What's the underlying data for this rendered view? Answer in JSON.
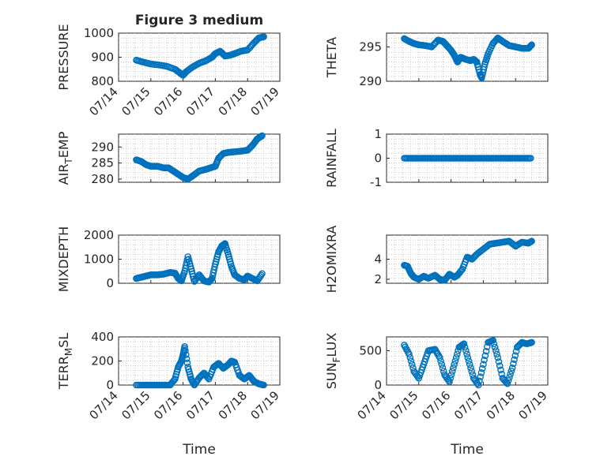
{
  "chart_data": [
    {
      "type": "scatter",
      "title": "Figure 3 medium",
      "ylabel": "PRESSURE",
      "ylim": [
        800,
        1000
      ],
      "yticks": [
        "800",
        "900",
        "1000"
      ],
      "xlim": [
        "07/14",
        "07/19"
      ],
      "xticks": [
        "07/14",
        "07/15",
        "07/16",
        "07/17",
        "07/18",
        "07/19"
      ],
      "grid": "on",
      "marker_color": "#0072bd",
      "series": [
        {
          "x": [
            14.55,
            14.75,
            15.0,
            15.25,
            15.5,
            15.75,
            15.9,
            16.0,
            16.1,
            16.3,
            16.5,
            16.7,
            16.9,
            17.0,
            17.15,
            17.3,
            17.45,
            17.6,
            17.8,
            18.0,
            18.2,
            18.35,
            18.5
          ],
          "y": [
            888,
            880,
            872,
            868,
            862,
            850,
            835,
            825,
            840,
            860,
            875,
            885,
            900,
            915,
            925,
            905,
            908,
            915,
            925,
            930,
            960,
            980,
            985
          ]
        }
      ]
    },
    {
      "type": "scatter",
      "ylabel": "THETA",
      "ylim": [
        290,
        297
      ],
      "yticks": [
        "290",
        "295"
      ],
      "xlim": [
        "07/14",
        "07/19"
      ],
      "grid": "on",
      "series": [
        {
          "x": [
            14.55,
            14.7,
            14.85,
            15.0,
            15.2,
            15.4,
            15.6,
            15.75,
            15.85,
            16.0,
            16.1,
            16.2,
            16.3,
            16.45,
            16.6,
            16.7,
            16.8,
            16.9,
            16.95,
            17.05,
            17.15,
            17.3,
            17.45,
            17.6,
            17.8,
            18.0,
            18.2,
            18.4,
            18.5
          ],
          "y": [
            296.2,
            295.8,
            295.5,
            295.3,
            295.2,
            295.0,
            296.0,
            295.8,
            295.3,
            294.5,
            293.8,
            292.8,
            293.5,
            293.2,
            293.0,
            293.2,
            292.8,
            291.0,
            290.5,
            292.5,
            294.0,
            295.5,
            296.3,
            295.8,
            295.2,
            295.0,
            294.8,
            294.8,
            295.3
          ]
        }
      ]
    },
    {
      "type": "scatter",
      "ylabel": "AIR_TEMP",
      "ylim": [
        279,
        294
      ],
      "yticks": [
        "280",
        "285",
        "290"
      ],
      "xlim": [
        "07/14",
        "07/19"
      ],
      "grid": "on",
      "series": [
        {
          "x": [
            14.55,
            14.7,
            14.85,
            15.0,
            15.2,
            15.4,
            15.55,
            15.7,
            15.85,
            16.0,
            16.15,
            16.3,
            16.5,
            16.7,
            16.85,
            17.0,
            17.1,
            17.25,
            17.4,
            17.6,
            17.8,
            18.0,
            18.15,
            18.3,
            18.45
          ],
          "y": [
            286,
            285.5,
            284.5,
            284,
            284,
            283.5,
            283.5,
            282.5,
            281.5,
            280.5,
            280,
            281,
            282.5,
            283,
            283.5,
            284,
            286.5,
            288,
            288.3,
            288.5,
            288.7,
            289,
            290.5,
            292.5,
            293.5
          ]
        }
      ]
    },
    {
      "type": "scatter",
      "ylabel": "RAINFALL",
      "ylim": [
        -1,
        1
      ],
      "yticks": [
        "-1",
        "0",
        "1"
      ],
      "xlim": [
        "07/14",
        "07/19"
      ],
      "grid": "on",
      "series": [
        {
          "x": [
            14.55,
            18.5
          ],
          "y": [
            0,
            0
          ]
        }
      ]
    },
    {
      "type": "scatter",
      "ylabel": "MIXDEPTH",
      "ylim": [
        0,
        2000
      ],
      "yticks": [
        "0",
        "1000",
        "2000"
      ],
      "xlim": [
        "07/14",
        "07/19"
      ],
      "grid": "on",
      "series": [
        {
          "x": [
            14.55,
            14.7,
            14.85,
            15.0,
            15.2,
            15.4,
            15.6,
            15.75,
            15.85,
            15.95,
            16.05,
            16.15,
            16.25,
            16.35,
            16.5,
            16.65,
            16.8,
            16.9,
            17.0,
            17.1,
            17.2,
            17.3,
            17.4,
            17.5,
            17.6,
            17.75,
            17.9,
            18.0,
            18.15,
            18.3,
            18.45
          ],
          "y": [
            200,
            250,
            300,
            350,
            350,
            380,
            450,
            420,
            200,
            100,
            500,
            1100,
            600,
            80,
            350,
            100,
            50,
            200,
            800,
            1300,
            1550,
            1650,
            1200,
            700,
            350,
            200,
            150,
            300,
            200,
            100,
            400
          ]
        }
      ]
    },
    {
      "type": "scatter",
      "ylabel": "H2OMIXRA",
      "ylim": [
        1.6,
        6.4
      ],
      "yticks": [
        "2",
        "4"
      ],
      "xlim": [
        "07/14",
        "07/19"
      ],
      "grid": "on",
      "series": [
        {
          "x": [
            14.55,
            14.65,
            14.75,
            14.85,
            15.0,
            15.15,
            15.3,
            15.5,
            15.65,
            15.8,
            15.95,
            16.1,
            16.2,
            16.35,
            16.5,
            16.65,
            16.8,
            17.0,
            17.2,
            17.4,
            17.6,
            17.8,
            18.0,
            18.2,
            18.4,
            18.5
          ],
          "y": [
            3.4,
            3.3,
            2.6,
            2.2,
            2.0,
            2.3,
            2.1,
            2.4,
            2.0,
            1.9,
            2.5,
            2.2,
            2.4,
            3.0,
            4.2,
            4.0,
            4.5,
            5.0,
            5.5,
            5.6,
            5.7,
            5.8,
            5.3,
            5.7,
            5.6,
            5.8
          ]
        }
      ]
    },
    {
      "type": "scatter",
      "ylabel": "TERR_MSL",
      "ylim": [
        0,
        400
      ],
      "yticks": [
        "0",
        "200",
        "400"
      ],
      "xlim": [
        "07/14",
        "07/19"
      ],
      "xticks": [
        "07/14",
        "07/15",
        "07/16",
        "07/17",
        "07/18",
        "07/19"
      ],
      "xlabel": "Time",
      "grid": "on",
      "series": [
        {
          "x": [
            14.55,
            14.8,
            15.0,
            15.2,
            15.4,
            15.6,
            15.75,
            15.85,
            15.95,
            16.0,
            16.05,
            16.15,
            16.25,
            16.35,
            16.5,
            16.65,
            16.8,
            16.95,
            17.1,
            17.25,
            17.4,
            17.5,
            17.6,
            17.75,
            17.9,
            18.05,
            18.2,
            18.35,
            18.5
          ],
          "y": [
            0,
            0,
            0,
            0,
            0,
            0,
            50,
            150,
            200,
            250,
            320,
            150,
            50,
            0,
            60,
            100,
            50,
            150,
            180,
            140,
            170,
            200,
            190,
            80,
            50,
            80,
            30,
            10,
            0
          ]
        }
      ]
    },
    {
      "type": "scatter",
      "ylabel": "SUN_FLUX",
      "ylim": [
        0,
        700
      ],
      "yticks": [
        "0",
        "500"
      ],
      "xlim": [
        "07/14",
        "07/19"
      ],
      "xticks": [
        "07/14",
        "07/15",
        "07/16",
        "07/17",
        "07/18",
        "07/19"
      ],
      "xlabel": "Time",
      "grid": "on",
      "series": [
        {
          "x": [
            14.55,
            14.7,
            14.85,
            15.0,
            15.15,
            15.3,
            15.5,
            15.65,
            15.8,
            15.95,
            16.1,
            16.25,
            16.4,
            16.55,
            16.7,
            16.85,
            17.0,
            17.15,
            17.3,
            17.45,
            17.6,
            17.75,
            17.9,
            18.05,
            18.2,
            18.35,
            18.5
          ],
          "y": [
            580,
            450,
            200,
            100,
            300,
            500,
            520,
            400,
            150,
            50,
            300,
            550,
            600,
            350,
            100,
            0,
            300,
            620,
            650,
            400,
            100,
            20,
            250,
            550,
            620,
            600,
            620
          ]
        }
      ]
    }
  ]
}
